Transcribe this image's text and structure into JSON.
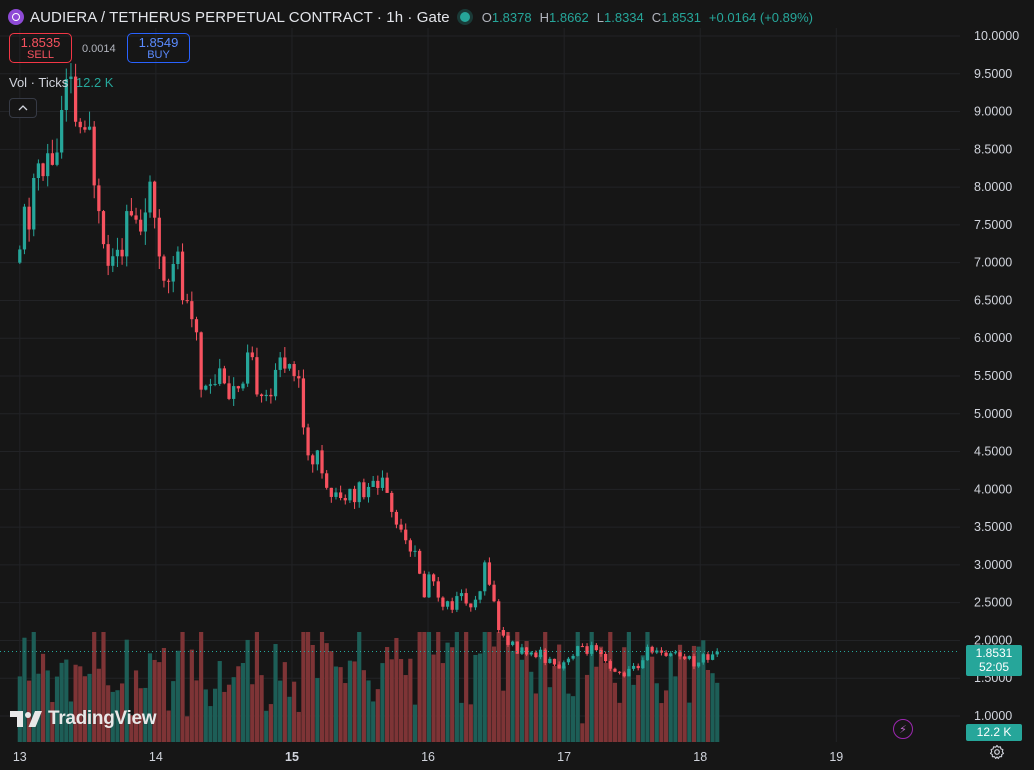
{
  "header": {
    "title": "AUDIERA / TETHERUS PERPETUAL CONTRACT · 1h · Gate",
    "ohlc": {
      "o_label": "O",
      "o": "1.8378",
      "h_label": "H",
      "h": "1.8662",
      "l_label": "L",
      "l": "1.8334",
      "c_label": "C",
      "c": "1.8531",
      "change": "+0.0164 (+0.89%)"
    }
  },
  "trade": {
    "sell_price": "1.8535",
    "sell_label": "SELL",
    "spread": "0.0014",
    "buy_price": "1.8549",
    "buy_label": "BUY"
  },
  "volume_legend": {
    "label": "Vol · Ticks",
    "value": "12.2 K"
  },
  "price_scale": {
    "last_price": "1.8531",
    "countdown": "52:05",
    "volume_tag": "12.2 K"
  },
  "branding": {
    "name": "TradingView"
  },
  "icons": {
    "symbol": "audiera-logo-icon",
    "status": "market-open-dot-icon",
    "collapse": "chevron-up-icon",
    "replay": "lightning-icon",
    "settings": "gear-icon"
  },
  "colors": {
    "background": "#161616",
    "up": "#26a69a",
    "down": "#f7525f",
    "up_volume": "#1d5e57",
    "down_volume": "#7e3436",
    "grid": "#222326"
  },
  "chart_data": {
    "type": "candlestick",
    "y_axis_ticks": [
      "10.0000",
      "9.5000",
      "9.0000",
      "8.5000",
      "8.0000",
      "7.5000",
      "7.0000",
      "6.5000",
      "6.0000",
      "5.5000",
      "5.0000",
      "4.5000",
      "4.0000",
      "3.5000",
      "3.0000",
      "2.5000",
      "2.0000",
      "1.5000",
      "1.0000"
    ],
    "ylim": [
      1.0,
      10.0
    ],
    "x_axis_ticks": [
      "13",
      "14",
      "15",
      "16",
      "17",
      "18",
      "19"
    ],
    "x_tick_hours": [
      0,
      24,
      48,
      72,
      96,
      120,
      144
    ],
    "x_tick_bold": [
      false,
      false,
      true,
      false,
      false,
      false,
      false
    ],
    "hours_shown": [
      -1.2,
      154
    ],
    "last_price": 1.8531,
    "price_path": [
      [
        0,
        7.0
      ],
      [
        1,
        7.75
      ],
      [
        2,
        7.6
      ],
      [
        3,
        8.2
      ],
      [
        4,
        8.0
      ],
      [
        5,
        8.3
      ],
      [
        6,
        8.6
      ],
      [
        7,
        8.55
      ],
      [
        8,
        9.15
      ],
      [
        9,
        9.3
      ],
      [
        10,
        9.05
      ],
      [
        11,
        8.45
      ],
      [
        12,
        8.7
      ],
      [
        13,
        8.3
      ],
      [
        14,
        7.8
      ],
      [
        15,
        7.3
      ],
      [
        16,
        7.1
      ],
      [
        17,
        7.45
      ],
      [
        18,
        7.25
      ],
      [
        19,
        7.55
      ],
      [
        20,
        7.4
      ],
      [
        21,
        7.45
      ],
      [
        22,
        7.75
      ],
      [
        23,
        7.85
      ],
      [
        24,
        7.35
      ],
      [
        25,
        7.05
      ],
      [
        26,
        6.8
      ],
      [
        27,
        7.1
      ],
      [
        28,
        6.95
      ],
      [
        29,
        6.6
      ],
      [
        30,
        6.2
      ],
      [
        31,
        6.0
      ],
      [
        32,
        5.45
      ],
      [
        33,
        5.5
      ],
      [
        34,
        5.55
      ],
      [
        35,
        5.45
      ],
      [
        36,
        5.5
      ],
      [
        37,
        5.35
      ],
      [
        38,
        5.2
      ],
      [
        39,
        5.15
      ],
      [
        40,
        5.65
      ],
      [
        41,
        5.6
      ],
      [
        42,
        5.3
      ],
      [
        43,
        5.35
      ],
      [
        44,
        5.3
      ],
      [
        45,
        5.45
      ],
      [
        46,
        5.6
      ],
      [
        47,
        5.7
      ],
      [
        48,
        5.75
      ],
      [
        49,
        5.4
      ],
      [
        50,
        4.95
      ],
      [
        51,
        4.5
      ],
      [
        52,
        4.4
      ],
      [
        53,
        4.35
      ],
      [
        54,
        4.15
      ],
      [
        55,
        4.0
      ],
      [
        56,
        3.8
      ],
      [
        57,
        3.85
      ],
      [
        58,
        4.1
      ],
      [
        59,
        3.9
      ],
      [
        60,
        4.05
      ],
      [
        61,
        3.95
      ],
      [
        62,
        4.0
      ],
      [
        63,
        4.15
      ],
      [
        64,
        4.1
      ],
      [
        65,
        4.0
      ],
      [
        66,
        3.7
      ],
      [
        67,
        3.55
      ],
      [
        68,
        3.4
      ],
      [
        69,
        3.2
      ],
      [
        70,
        3.1
      ],
      [
        71,
        2.55
      ],
      [
        72,
        2.8
      ],
      [
        73,
        2.85
      ],
      [
        74,
        2.6
      ],
      [
        75,
        2.45
      ],
      [
        76,
        2.45
      ],
      [
        77,
        2.55
      ],
      [
        78,
        2.6
      ],
      [
        79,
        2.55
      ],
      [
        80,
        2.45
      ],
      [
        81,
        2.5
      ],
      [
        82,
        2.95
      ],
      [
        83,
        2.8
      ],
      [
        84,
        2.3
      ],
      [
        85,
        2.05
      ],
      [
        86,
        2.0
      ],
      [
        87,
        1.95
      ],
      [
        88,
        1.85
      ],
      [
        89,
        1.9
      ],
      [
        90,
        1.8
      ],
      [
        91,
        1.75
      ],
      [
        92,
        1.85
      ],
      [
        93,
        1.7
      ],
      [
        94,
        1.75
      ],
      [
        95,
        1.65
      ],
      [
        96,
        1.75
      ],
      [
        97,
        1.8
      ],
      [
        98,
        1.85
      ],
      [
        99,
        1.9
      ],
      [
        100,
        1.85
      ],
      [
        101,
        1.9
      ],
      [
        102,
        1.8
      ],
      [
        103,
        1.75
      ],
      [
        104,
        1.6
      ],
      [
        105,
        1.55
      ],
      [
        106,
        1.55
      ],
      [
        107,
        1.58
      ],
      [
        108,
        1.62
      ],
      [
        109,
        1.65
      ],
      [
        110,
        1.8
      ],
      [
        111,
        1.9
      ],
      [
        112,
        1.85
      ],
      [
        113,
        1.8
      ],
      [
        114,
        1.85
      ],
      [
        115,
        1.9
      ],
      [
        116,
        1.85
      ],
      [
        117,
        1.8
      ],
      [
        118,
        1.75
      ],
      [
        119,
        1.7
      ],
      [
        120,
        1.78
      ],
      [
        121,
        1.75
      ],
      [
        122,
        1.85
      ],
      [
        123,
        1.8534
      ]
    ]
  }
}
